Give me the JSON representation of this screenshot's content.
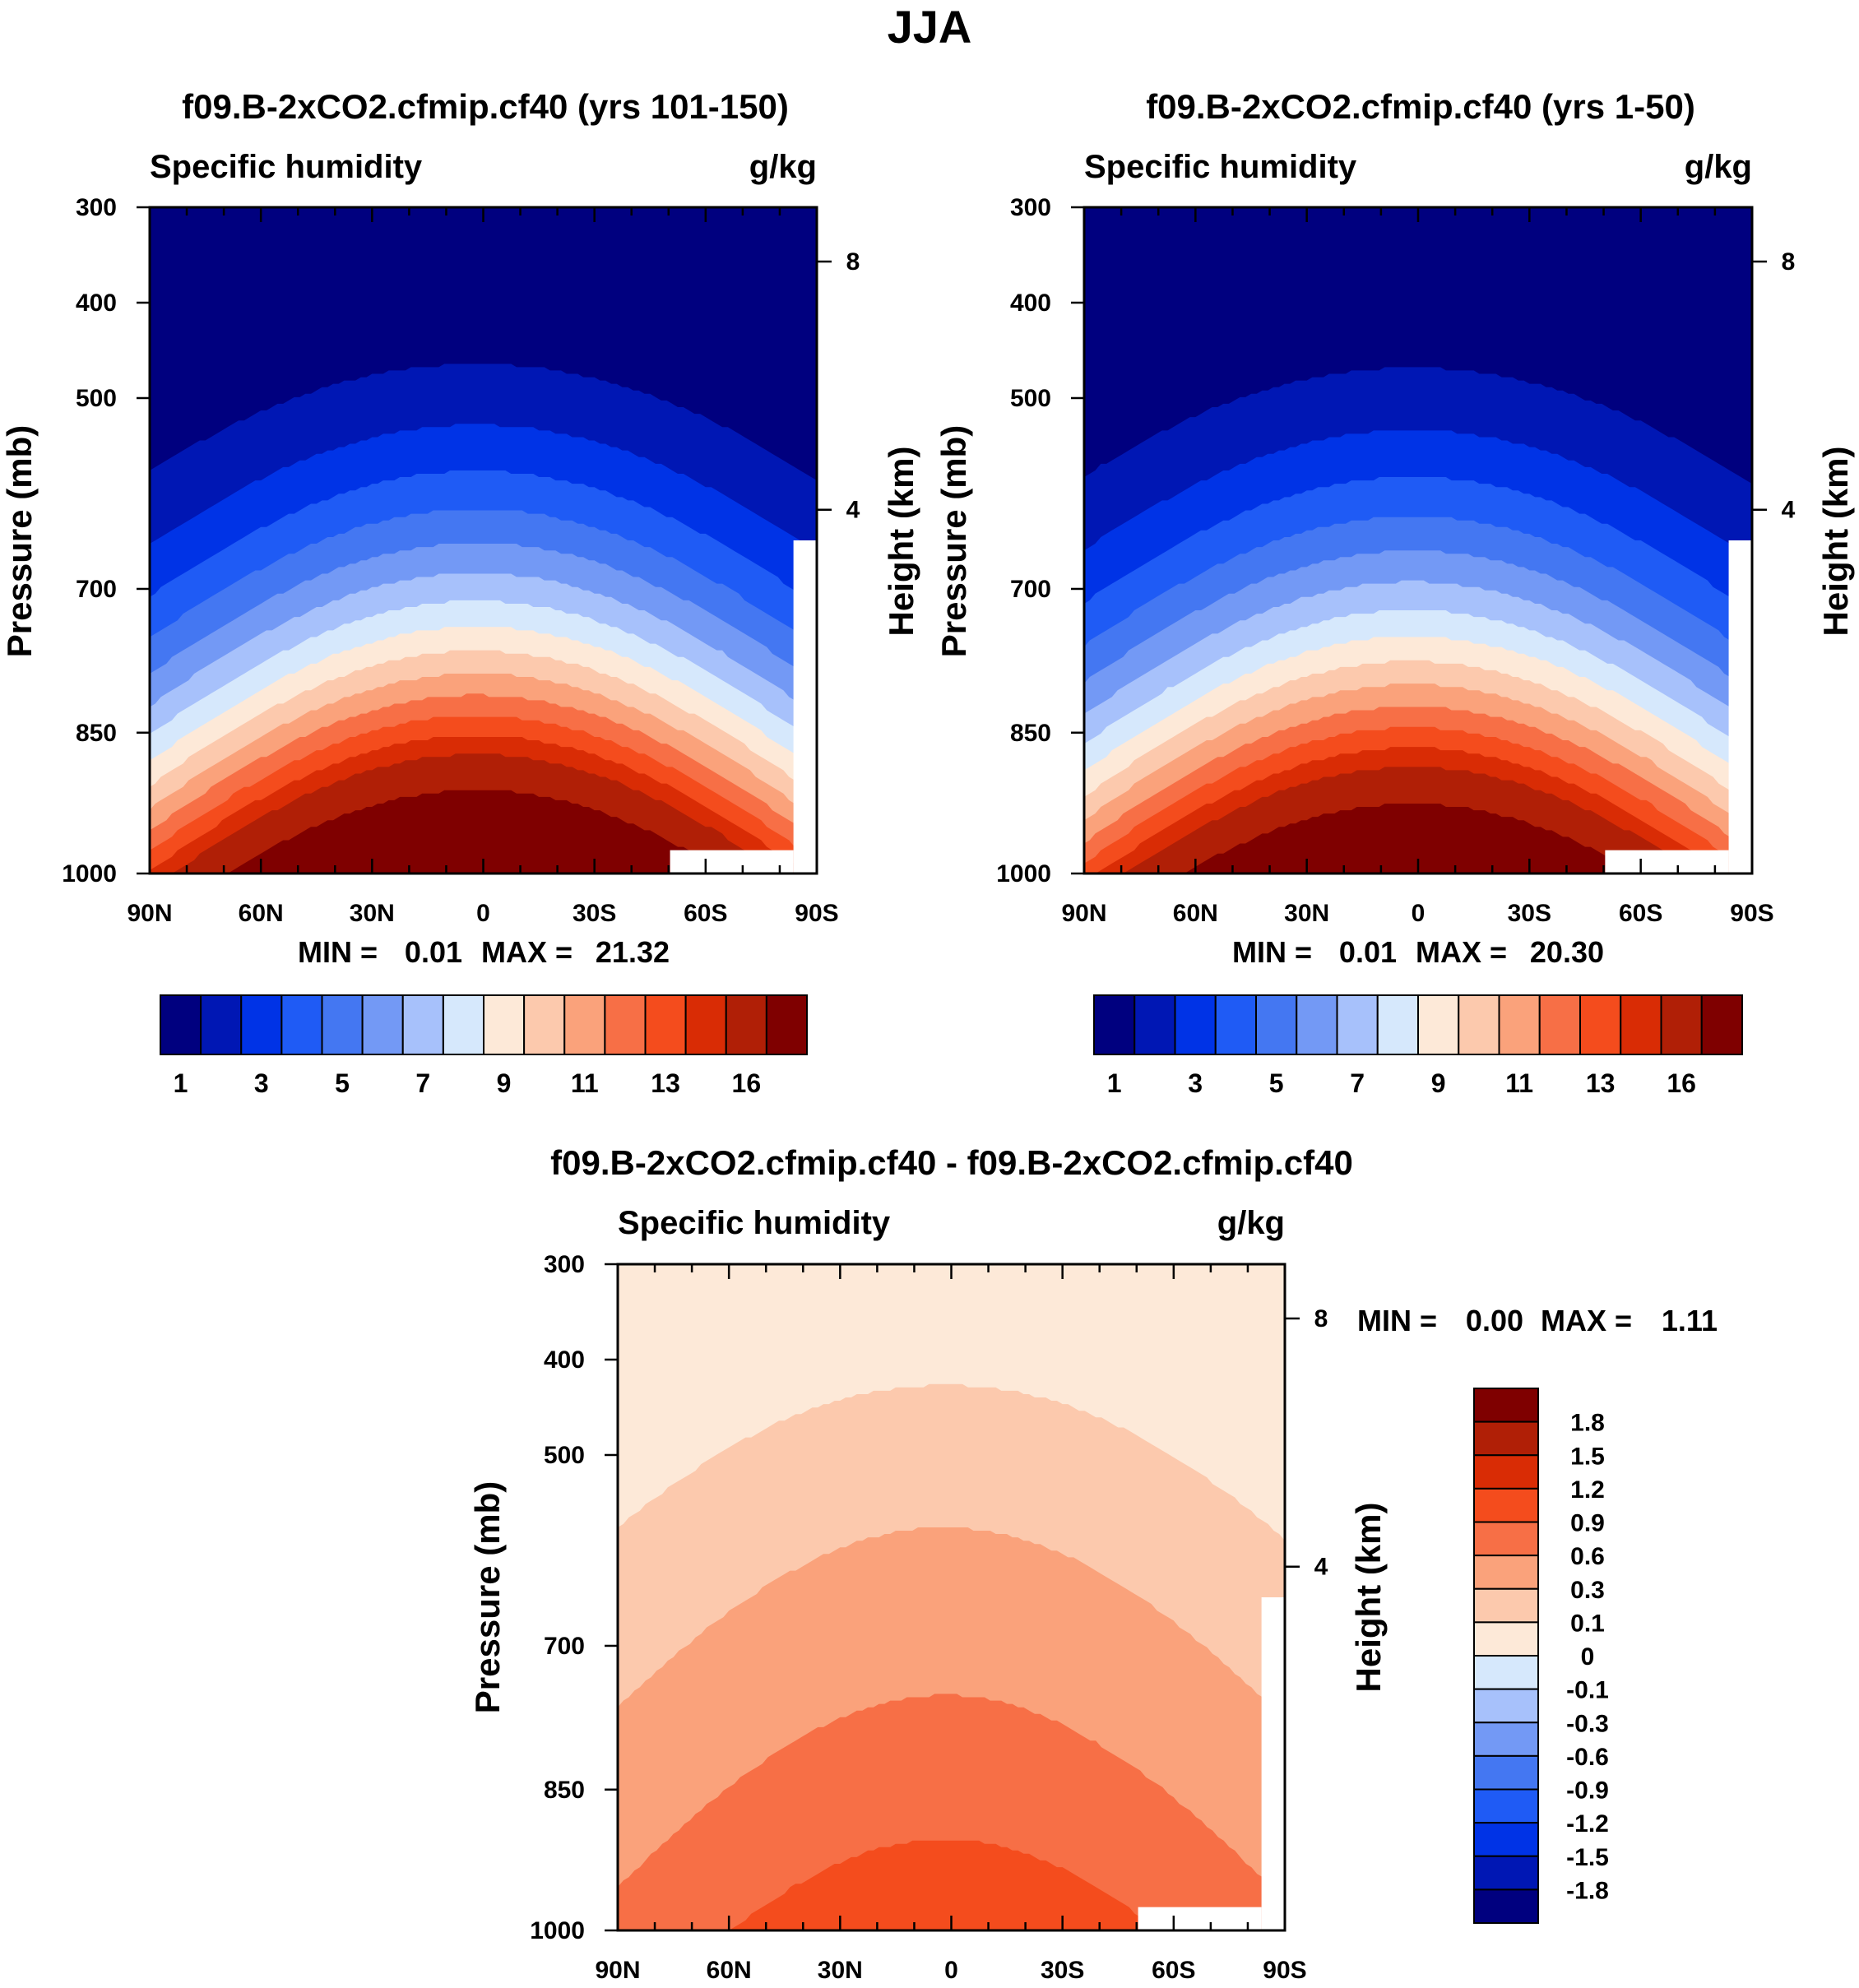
{
  "figure": {
    "title": "JJA"
  },
  "chart_data": [
    {
      "type": "heatmap",
      "title": "f09.B-2xCO2.cfmip.cf40 (yrs 101-150)",
      "variable": "Specific humidity",
      "units": "g/kg",
      "ylabel": "Pressure (mb)",
      "ylabel_right": "Height (km)",
      "x_ticks": [
        "90N",
        "60N",
        "30N",
        "0",
        "30S",
        "60S",
        "90S"
      ],
      "y_ticks": [
        "300",
        "400",
        "500",
        "700",
        "850",
        "1000"
      ],
      "y_ticks_right": [
        "8",
        "4"
      ],
      "min_label": "MIN =",
      "min_value": "0.01",
      "max_label": "MAX =",
      "max_value": "21.32",
      "colorbar_labels": [
        "1",
        "3",
        "5",
        "7",
        "9",
        "11",
        "13",
        "16"
      ],
      "colorbar_colors": [
        "#00007f",
        "#0017b4",
        "#0033e6",
        "#1f5bf5",
        "#4477f2",
        "#7399f5",
        "#a7c1fb",
        "#d6e8fc",
        "#fde9d8",
        "#fcc9ad",
        "#faa27b",
        "#f76f46",
        "#f44c1d",
        "#d92c05",
        "#b01f06",
        "#7f0000"
      ],
      "ylim": [
        1000,
        300
      ]
    },
    {
      "type": "heatmap",
      "title": "f09.B-2xCO2.cfmip.cf40 (yrs 1-50)",
      "variable": "Specific humidity",
      "units": "g/kg",
      "ylabel": "Pressure (mb)",
      "ylabel_right": "Height (km)",
      "x_ticks": [
        "90N",
        "60N",
        "30N",
        "0",
        "30S",
        "60S",
        "90S"
      ],
      "y_ticks": [
        "300",
        "400",
        "500",
        "700",
        "850",
        "1000"
      ],
      "y_ticks_right": [
        "8",
        "4"
      ],
      "min_label": "MIN =",
      "min_value": "0.01",
      "max_label": "MAX =",
      "max_value": "20.30",
      "colorbar_labels": [
        "1",
        "3",
        "5",
        "7",
        "9",
        "11",
        "13",
        "16"
      ],
      "colorbar_colors": [
        "#00007f",
        "#0017b4",
        "#0033e6",
        "#1f5bf5",
        "#4477f2",
        "#7399f5",
        "#a7c1fb",
        "#d6e8fc",
        "#fde9d8",
        "#fcc9ad",
        "#faa27b",
        "#f76f46",
        "#f44c1d",
        "#d92c05",
        "#b01f06",
        "#7f0000"
      ],
      "ylim": [
        1000,
        300
      ]
    },
    {
      "type": "heatmap",
      "title": "f09.B-2xCO2.cfmip.cf40 - f09.B-2xCO2.cfmip.cf40",
      "variable": "Specific humidity",
      "units": "g/kg",
      "ylabel": "Pressure (mb)",
      "ylabel_right": "Height (km)",
      "x_ticks": [
        "90N",
        "60N",
        "30N",
        "0",
        "30S",
        "60S",
        "90S"
      ],
      "y_ticks": [
        "300",
        "400",
        "500",
        "700",
        "850",
        "1000"
      ],
      "y_ticks_right": [
        "8",
        "4"
      ],
      "min_label": "MIN =",
      "min_value": "0.00",
      "max_label": "MAX =",
      "max_value": "1.11",
      "colorbar_labels": [
        "1.8",
        "1.5",
        "1.2",
        "0.9",
        "0.6",
        "0.3",
        "0.1",
        "0",
        "-0.1",
        "-0.3",
        "-0.6",
        "-0.9",
        "-1.2",
        "-1.5",
        "-1.8"
      ],
      "colorbar_colors": [
        "#7f0000",
        "#b01f06",
        "#d92c05",
        "#f44c1d",
        "#f76f46",
        "#faa27b",
        "#fcc9ad",
        "#fde9d8",
        "#d6e8fc",
        "#a7c1fb",
        "#7399f5",
        "#4477f2",
        "#1f5bf5",
        "#0033e6",
        "#0017b4",
        "#00007f"
      ],
      "ylim": [
        1000,
        300
      ]
    }
  ]
}
